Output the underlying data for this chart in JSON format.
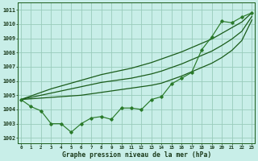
{
  "title": "Graphe pression niveau de la mer (hPa)",
  "bg_color": "#c8eee8",
  "grid_color": "#99ccbb",
  "line_color_dark": "#1a5c1a",
  "line_color_med": "#2a7a2a",
  "xlim": [
    -0.3,
    23.3
  ],
  "ylim": [
    1001.6,
    1011.5
  ],
  "xticks": [
    0,
    1,
    2,
    3,
    4,
    5,
    6,
    7,
    8,
    9,
    10,
    11,
    12,
    13,
    14,
    15,
    16,
    17,
    18,
    19,
    20,
    21,
    22,
    23
  ],
  "yticks": [
    1002,
    1003,
    1004,
    1005,
    1006,
    1007,
    1008,
    1009,
    1010,
    1011
  ],
  "main_data": [
    1004.7,
    1004.2,
    1003.9,
    1003.0,
    1003.0,
    1002.4,
    1003.0,
    1003.4,
    1003.5,
    1003.3,
    1004.1,
    1004.1,
    1004.0,
    1004.7,
    1004.9,
    1005.8,
    1006.2,
    1006.6,
    1008.2,
    1009.1,
    1010.2,
    1010.1,
    1010.5,
    1010.8
  ],
  "top_line": [
    1004.7,
    1004.95,
    1005.2,
    1005.45,
    1005.65,
    1005.85,
    1006.05,
    1006.25,
    1006.45,
    1006.6,
    1006.75,
    1006.9,
    1007.1,
    1007.3,
    1007.55,
    1007.8,
    1008.05,
    1008.35,
    1008.65,
    1008.95,
    1009.35,
    1009.75,
    1010.15,
    1010.8
  ],
  "mid_line": [
    1004.7,
    1004.85,
    1005.0,
    1005.15,
    1005.3,
    1005.45,
    1005.6,
    1005.75,
    1005.9,
    1006.0,
    1006.1,
    1006.2,
    1006.35,
    1006.5,
    1006.7,
    1006.95,
    1007.2,
    1007.5,
    1007.8,
    1008.1,
    1008.5,
    1008.95,
    1009.5,
    1010.55
  ],
  "bot_line": [
    1004.7,
    1004.75,
    1004.8,
    1004.85,
    1004.9,
    1004.95,
    1005.0,
    1005.1,
    1005.2,
    1005.3,
    1005.4,
    1005.5,
    1005.6,
    1005.7,
    1005.85,
    1006.1,
    1006.35,
    1006.65,
    1006.95,
    1007.25,
    1007.65,
    1008.15,
    1008.85,
    1010.3
  ]
}
